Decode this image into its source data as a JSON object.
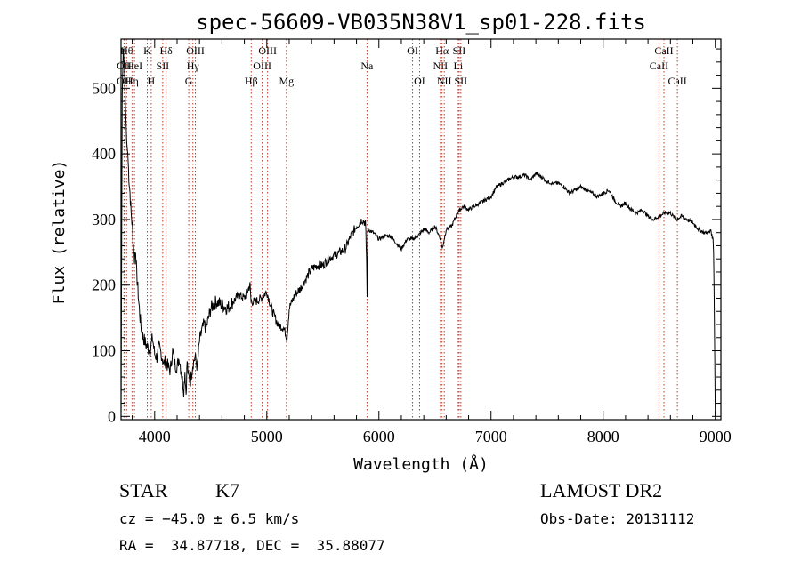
{
  "chart_data": {
    "type": "line",
    "title": "spec-56609-VB035N38V1_sp01-228.fits",
    "xlabel": "Wavelength (Å)",
    "ylabel": "Flux (relative)",
    "xlim": [
      3700,
      9050
    ],
    "ylim": [
      -5,
      575
    ],
    "x_ticks": [
      4000,
      5000,
      6000,
      7000,
      8000,
      9000
    ],
    "y_ticks": [
      0,
      100,
      200,
      300,
      400,
      500
    ],
    "series": [
      {
        "x": [
          3700,
          3705,
          3710,
          3720,
          3730,
          3740,
          3750,
          3760,
          3770,
          3780,
          3790,
          3800,
          3810,
          3820,
          3830,
          3840,
          3850,
          3860,
          3870,
          3880,
          3890,
          3900,
          3920,
          3940,
          3960,
          3980,
          4000,
          4020,
          4040,
          4060,
          4080,
          4100,
          4120,
          4140,
          4160,
          4180,
          4200,
          4220,
          4240,
          4260,
          4270,
          4280,
          4290,
          4300,
          4320,
          4340,
          4360,
          4380,
          4400,
          4420,
          4440,
          4460,
          4480,
          4500,
          4550,
          4600,
          4650,
          4700,
          4750,
          4800,
          4850,
          4860,
          4900,
          4950,
          5000,
          5050,
          5100,
          5150,
          5180,
          5200,
          5250,
          5300,
          5350,
          5400,
          5450,
          5500,
          5550,
          5600,
          5650,
          5700,
          5750,
          5800,
          5850,
          5880,
          5890,
          5895,
          5900,
          5950,
          6000,
          6050,
          6100,
          6150,
          6200,
          6250,
          6300,
          6350,
          6400,
          6450,
          6500,
          6550,
          6565,
          6600,
          6650,
          6700,
          6750,
          6800,
          6850,
          6900,
          6950,
          7000,
          7050,
          7100,
          7150,
          7200,
          7250,
          7300,
          7350,
          7400,
          7450,
          7500,
          7550,
          7600,
          7650,
          7700,
          7750,
          7800,
          7850,
          7900,
          7950,
          8000,
          8050,
          8100,
          8150,
          8200,
          8250,
          8300,
          8350,
          8400,
          8450,
          8500,
          8550,
          8600,
          8650,
          8700,
          8750,
          8800,
          8850,
          8900,
          8950,
          8960,
          8970,
          8980,
          8985,
          8990,
          8995,
          9000
        ],
        "y": [
          0,
          215,
          490,
          560,
          530,
          470,
          420,
          400,
          365,
          340,
          310,
          290,
          262,
          240,
          255,
          215,
          195,
          170,
          150,
          135,
          125,
          120,
          110,
          105,
          100,
          120,
          95,
          90,
          105,
          95,
          80,
          85,
          75,
          70,
          100,
          80,
          75,
          90,
          65,
          40,
          70,
          35,
          85,
          60,
          55,
          80,
          90,
          75,
          115,
          130,
          140,
          135,
          150,
          165,
          175,
          170,
          165,
          175,
          185,
          180,
          200,
          175,
          175,
          180,
          190,
          160,
          140,
          135,
          120,
          165,
          185,
          195,
          210,
          225,
          230,
          230,
          240,
          245,
          250,
          255,
          275,
          290,
          300,
          295,
          240,
          180,
          285,
          280,
          270,
          275,
          275,
          265,
          255,
          270,
          270,
          275,
          285,
          280,
          290,
          270,
          255,
          285,
          290,
          310,
          320,
          315,
          320,
          325,
          330,
          335,
          350,
          355,
          360,
          365,
          365,
          368,
          360,
          370,
          365,
          358,
          355,
          355,
          350,
          340,
          345,
          350,
          345,
          340,
          335,
          340,
          345,
          330,
          320,
          325,
          315,
          310,
          315,
          305,
          300,
          305,
          310,
          310,
          300,
          305,
          300,
          295,
          285,
          280,
          280,
          285,
          275,
          270,
          250,
          190,
          90,
          0
        ]
      }
    ],
    "line_markers": [
      {
        "wave": 3727,
        "label": "OII",
        "row": 1
      },
      {
        "wave": 3727,
        "label": "OII",
        "row": 2
      },
      {
        "wave": 3750,
        "label": "Hθ",
        "row": 0
      },
      {
        "wave": 3798,
        "label": "Hη",
        "row": 2
      },
      {
        "wave": 3820,
        "label": "HeI",
        "row": 1
      },
      {
        "wave": 3934,
        "label": "K",
        "row": 0
      },
      {
        "wave": 3969,
        "label": "H",
        "row": 2
      },
      {
        "wave": 4072,
        "label": "SII",
        "row": 1
      },
      {
        "wave": 4102,
        "label": "Hδ",
        "row": 0
      },
      {
        "wave": 4304,
        "label": "G",
        "row": 2
      },
      {
        "wave": 4341,
        "label": "Hγ",
        "row": 1
      },
      {
        "wave": 4363,
        "label": "OIII",
        "row": 0
      },
      {
        "wave": 4861,
        "label": "Hβ",
        "row": 2
      },
      {
        "wave": 4959,
        "label": "OIII",
        "row": 1
      },
      {
        "wave": 5007,
        "label": "OIII",
        "row": 0
      },
      {
        "wave": 5175,
        "label": "Mg",
        "row": 2
      },
      {
        "wave": 5894,
        "label": "Na",
        "row": 1
      },
      {
        "wave": 6300,
        "label": "OI",
        "row": 0
      },
      {
        "wave": 6363,
        "label": "OI",
        "row": 2
      },
      {
        "wave": 6548,
        "label": "NII",
        "row": 1
      },
      {
        "wave": 6563,
        "label": "Hα",
        "row": 0
      },
      {
        "wave": 6583,
        "label": "NII",
        "row": 2
      },
      {
        "wave": 6707,
        "label": "Li",
        "row": 1
      },
      {
        "wave": 6716,
        "label": "SII",
        "row": 0
      },
      {
        "wave": 6731,
        "label": "SII",
        "row": 2
      },
      {
        "wave": 8498,
        "label": "CaII",
        "row": 1
      },
      {
        "wave": 8542,
        "label": "CaII",
        "row": 0
      },
      {
        "wave": 8662,
        "label": "CaII",
        "row": 2
      }
    ],
    "grid": false
  },
  "info": {
    "object_class": "STAR",
    "subclass": "K7",
    "redshift": "cz = −45.0 ± 6.5 km/s",
    "coords": "RA =  34.87718, DEC =  35.88077",
    "survey": "LAMOST DR2",
    "obs_date": "Obs-Date: 20131112"
  }
}
